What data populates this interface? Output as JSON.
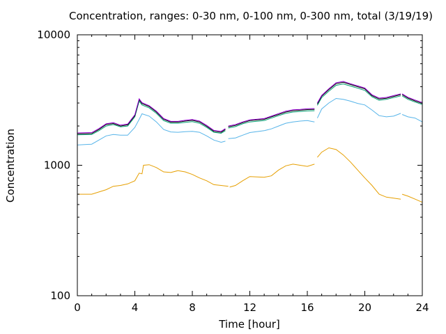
{
  "chart_data": {
    "type": "line",
    "title": "Concentration, ranges: 0-30 nm, 0-100 nm, 0-300 nm, total (3/19/19)",
    "xlabel": "Time [hour]",
    "ylabel": "Concentration",
    "xlim": [
      0,
      24
    ],
    "ylim": [
      100,
      10000
    ],
    "yscale": "log",
    "xticks": [
      0,
      4,
      8,
      12,
      16,
      20,
      24
    ],
    "yticks": [
      100,
      1000,
      10000
    ],
    "xtick_labels": [
      "0",
      "4",
      "8",
      "12",
      "16",
      "20",
      "24"
    ],
    "ytick_labels": [
      "100",
      "1000",
      "10000"
    ],
    "grid": false,
    "legend": "none",
    "series": [
      {
        "color": "#e69f00",
        "x": [
          0.0,
          1.0,
          2.0,
          2.5,
          3.0,
          3.5,
          4.0,
          4.3,
          4.5,
          4.6,
          5.0,
          5.5,
          6.0,
          6.5,
          7.0,
          7.5,
          8.0,
          8.5,
          9.0,
          9.5,
          10.0,
          10.5,
          10.6,
          11.0,
          11.5,
          12.0,
          13.0,
          13.5,
          14.0,
          14.5,
          15.0,
          15.5,
          16.0,
          16.5,
          16.7,
          17.0,
          17.5,
          18.0,
          18.5,
          19.0,
          19.5,
          20.0,
          20.5,
          21.0,
          21.5,
          22.0,
          22.5,
          22.6,
          23.0,
          23.5,
          24.0
        ],
        "y": [
          600,
          600,
          650,
          690,
          700,
          720,
          760,
          870,
          860,
          1000,
          1010,
          960,
          890,
          880,
          910,
          890,
          850,
          800,
          760,
          710,
          700,
          690,
          680,
          700,
          760,
          820,
          810,
          830,
          920,
          990,
          1020,
          1000,
          980,
          1020,
          1150,
          1260,
          1360,
          1320,
          1200,
          1060,
          920,
          800,
          700,
          600,
          570,
          560,
          550,
          600,
          580,
          550,
          520
        ]
      },
      {
        "color": "#56b4e9",
        "x": [
          0.0,
          1.0,
          1.5,
          2.0,
          2.5,
          3.0,
          3.5,
          4.0,
          4.3,
          4.5,
          5.0,
          5.5,
          6.0,
          6.5,
          7.0,
          7.5,
          8.0,
          8.5,
          9.0,
          9.5,
          10.0,
          10.3,
          10.5,
          11.0,
          11.5,
          12.0,
          13.0,
          13.5,
          14.0,
          14.5,
          15.0,
          15.5,
          16.0,
          16.5,
          16.7,
          17.0,
          17.5,
          18.0,
          18.5,
          19.0,
          19.5,
          20.0,
          20.5,
          21.0,
          21.5,
          22.0,
          22.5,
          22.6,
          23.0,
          23.5,
          24.0
        ],
        "y": [
          1430,
          1450,
          1560,
          1680,
          1720,
          1700,
          1700,
          1950,
          2250,
          2480,
          2380,
          2150,
          1880,
          1800,
          1790,
          1810,
          1820,
          1790,
          1680,
          1560,
          1500,
          1530,
          1600,
          1620,
          1700,
          1780,
          1840,
          1900,
          2000,
          2100,
          2150,
          2180,
          2200,
          2150,
          2300,
          2700,
          3000,
          3250,
          3200,
          3100,
          2980,
          2900,
          2650,
          2400,
          2350,
          2380,
          2500,
          2450,
          2350,
          2300,
          2150
        ]
      },
      {
        "color": "#009e73",
        "x": [
          0.0,
          1.0,
          1.5,
          2.0,
          2.5,
          3.0,
          3.5,
          4.0,
          4.3,
          4.5,
          5.0,
          5.5,
          6.0,
          6.5,
          7.0,
          7.5,
          8.0,
          8.5,
          9.0,
          9.5,
          10.0,
          10.3,
          10.5,
          11.0,
          11.5,
          12.0,
          13.0,
          13.5,
          14.0,
          14.5,
          15.0,
          15.5,
          16.0,
          16.5,
          16.7,
          17.0,
          17.5,
          18.0,
          18.5,
          19.0,
          19.5,
          20.0,
          20.5,
          21.0,
          21.5,
          22.0,
          22.5,
          22.6,
          23.0,
          23.5,
          24.0
        ],
        "y": [
          1710,
          1720,
          1840,
          2000,
          2050,
          1970,
          2000,
          2350,
          3100,
          2900,
          2750,
          2500,
          2200,
          2100,
          2100,
          2130,
          2160,
          2100,
          1950,
          1790,
          1760,
          1840,
          1930,
          1980,
          2080,
          2150,
          2200,
          2300,
          2400,
          2500,
          2560,
          2580,
          2610,
          2620,
          2880,
          3300,
          3700,
          4100,
          4200,
          4050,
          3900,
          3750,
          3350,
          3150,
          3200,
          3300,
          3400,
          3400,
          3200,
          3050,
          2920
        ]
      },
      {
        "color": "#000000",
        "x": [
          0.0,
          1.0,
          1.5,
          2.0,
          2.5,
          3.0,
          3.5,
          4.0,
          4.3,
          4.5,
          5.0,
          5.5,
          6.0,
          6.5,
          7.0,
          7.5,
          8.0,
          8.5,
          9.0,
          9.5,
          10.0,
          10.3,
          10.5,
          11.0,
          11.5,
          12.0,
          13.0,
          13.5,
          14.0,
          14.5,
          15.0,
          15.5,
          16.0,
          16.5,
          16.7,
          17.0,
          17.5,
          18.0,
          18.5,
          19.0,
          19.5,
          20.0,
          20.5,
          21.0,
          21.5,
          22.0,
          22.5,
          22.6,
          23.0,
          23.5,
          24.0
        ],
        "y": [
          1740,
          1750,
          1880,
          2050,
          2090,
          2000,
          2040,
          2400,
          3180,
          2970,
          2820,
          2560,
          2250,
          2140,
          2140,
          2180,
          2210,
          2150,
          1990,
          1820,
          1790,
          1880,
          1970,
          2020,
          2120,
          2200,
          2250,
          2350,
          2450,
          2560,
          2620,
          2640,
          2670,
          2680,
          2950,
          3380,
          3800,
          4220,
          4320,
          4160,
          4000,
          3850,
          3420,
          3220,
          3260,
          3370,
          3480,
          3480,
          3270,
          3110,
          2980
        ]
      },
      {
        "color": "#9400d3",
        "x": [
          0.0,
          1.0,
          1.5,
          2.0,
          2.5,
          3.0,
          3.5,
          4.0,
          4.3,
          4.5,
          5.0,
          5.5,
          6.0,
          6.5,
          7.0,
          7.5,
          8.0,
          8.5,
          9.0,
          9.5,
          10.0,
          10.3,
          10.5,
          11.0,
          11.5,
          12.0,
          13.0,
          13.5,
          14.0,
          14.5,
          15.0,
          15.5,
          16.0,
          16.5,
          16.7,
          17.0,
          17.5,
          18.0,
          18.5,
          19.0,
          19.5,
          20.0,
          20.5,
          21.0,
          21.5,
          22.0,
          22.5,
          22.6,
          23.0,
          23.5,
          24.0
        ],
        "y": [
          1770,
          1780,
          1910,
          2080,
          2120,
          2030,
          2070,
          2440,
          3230,
          3020,
          2860,
          2600,
          2280,
          2170,
          2170,
          2210,
          2240,
          2180,
          2020,
          1850,
          1820,
          1910,
          2000,
          2050,
          2150,
          2230,
          2280,
          2380,
          2490,
          2600,
          2660,
          2680,
          2710,
          2720,
          3000,
          3430,
          3860,
          4290,
          4390,
          4220,
          4060,
          3910,
          3470,
          3270,
          3310,
          3420,
          3530,
          3530,
          3320,
          3160,
          3030
        ]
      }
    ]
  }
}
